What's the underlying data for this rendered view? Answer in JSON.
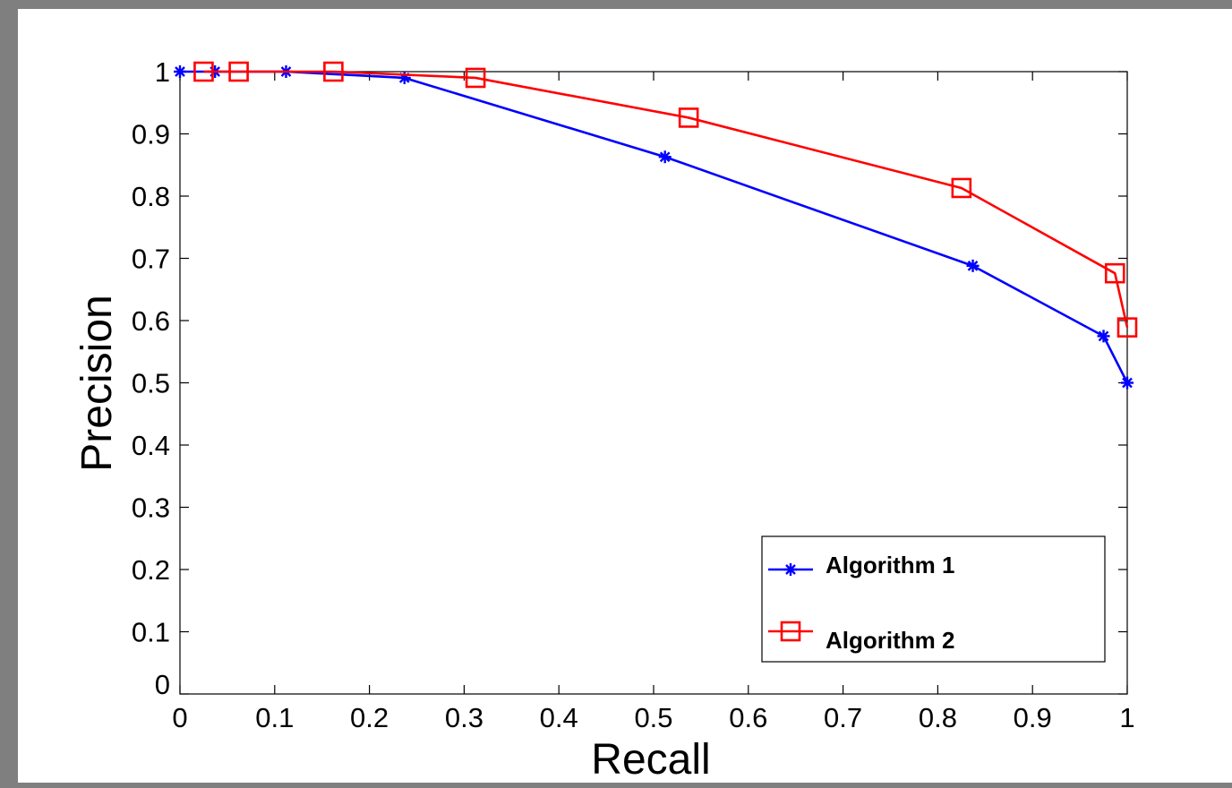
{
  "chart_data": {
    "type": "line",
    "title": "",
    "xlabel": "Recall",
    "ylabel": "Precision",
    "xlim": [
      0,
      1
    ],
    "ylim": [
      0,
      1
    ],
    "grid": false,
    "legend_position": "bottom-right",
    "xticks": [
      "0",
      "0.1",
      "0.2",
      "0.3",
      "0.4",
      "0.5",
      "0.6",
      "0.7",
      "0.8",
      "0.9",
      "1"
    ],
    "yticks": [
      "0",
      "0.1",
      "0.2",
      "0.3",
      "0.4",
      "0.5",
      "0.6",
      "0.7",
      "0.8",
      "0.9",
      "1"
    ],
    "series": [
      {
        "name": "Algorithm 1",
        "color": "#0000ff",
        "marker": "asterisk",
        "x": [
          0.0,
          0.037,
          0.112,
          0.237,
          0.512,
          0.837,
          0.975,
          1.0
        ],
        "y": [
          1.0,
          1.0,
          1.0,
          0.99,
          0.863,
          0.688,
          0.575,
          0.5
        ]
      },
      {
        "name": "Algorithm 2",
        "color": "#ff0000",
        "marker": "square",
        "x": [
          0.025,
          0.062,
          0.162,
          0.312,
          0.537,
          0.825,
          0.987,
          1.0
        ],
        "y": [
          1.0,
          1.0,
          1.0,
          0.99,
          0.926,
          0.813,
          0.676,
          0.589
        ]
      }
    ]
  }
}
